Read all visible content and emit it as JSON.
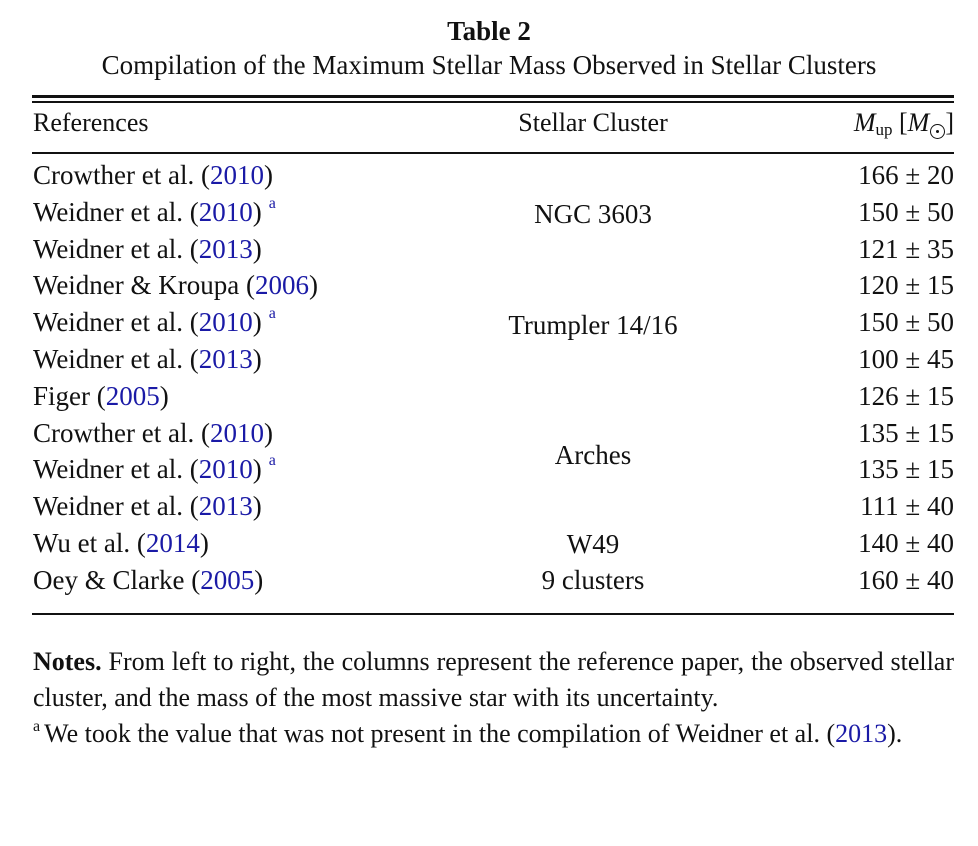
{
  "table": {
    "label": "Table 2",
    "title": "Compilation of the Maximum Stellar Mass Observed in Stellar Clusters",
    "headers": {
      "references": "References",
      "cluster": "Stellar Cluster",
      "mass_symbol": "M",
      "mass_subscript": "up",
      "mass_unit_open": "[",
      "mass_unit_symbol": "M",
      "mass_unit_close": "]"
    },
    "rows": [
      {
        "author": "Crowther et al. (",
        "year": "2010",
        "close": ")",
        "footnote": "",
        "mass": "166 ± 20"
      },
      {
        "author": "Weidner et al. (",
        "year": "2010",
        "close": ")",
        "footnote": "a",
        "mass": "150 ± 50"
      },
      {
        "author": "Weidner et al. (",
        "year": "2013",
        "close": ")",
        "footnote": "",
        "mass": "121 ± 35"
      },
      {
        "author": "Weidner & Kroupa (",
        "year": "2006",
        "close": ")",
        "footnote": "",
        "mass": "120 ± 15"
      },
      {
        "author": "Weidner et al. (",
        "year": "2010",
        "close": ")",
        "footnote": "a",
        "mass": "150 ± 50"
      },
      {
        "author": "Weidner et al. (",
        "year": "2013",
        "close": ")",
        "footnote": "",
        "mass": "100 ± 45"
      },
      {
        "author": "Figer (",
        "year": "2005",
        "close": ")",
        "footnote": "",
        "mass": "126 ± 15"
      },
      {
        "author": "Crowther et al. (",
        "year": "2010",
        "close": ")",
        "footnote": "",
        "mass": "135 ± 15"
      },
      {
        "author": "Weidner et al. (",
        "year": "2010",
        "close": ")",
        "footnote": "a",
        "mass": "135 ± 15"
      },
      {
        "author": "Weidner et al. (",
        "year": "2013",
        "close": ")",
        "footnote": "",
        "mass": "111 ± 40"
      },
      {
        "author": "Wu et al. (",
        "year": "2014",
        "close": ")",
        "footnote": "",
        "mass": "140 ± 40"
      },
      {
        "author": "Oey & Clarke (",
        "year": "2005",
        "close": ")",
        "footnote": "",
        "mass": "160 ± 40"
      }
    ],
    "clusters": [
      "NGC 3603",
      "Trumpler 14/16",
      "Arches",
      "W49",
      "9 clusters"
    ]
  },
  "notes": {
    "label": "Notes.",
    "text": "From left to right, the columns represent the reference paper, the observed stellar cluster, and the mass of the most massive star with its uncertainty.",
    "footnote_mark": "a",
    "footnote_text": "We took the value that was not present in the compilation of Weidner et al. (",
    "footnote_year": "2013",
    "footnote_close": ")."
  }
}
